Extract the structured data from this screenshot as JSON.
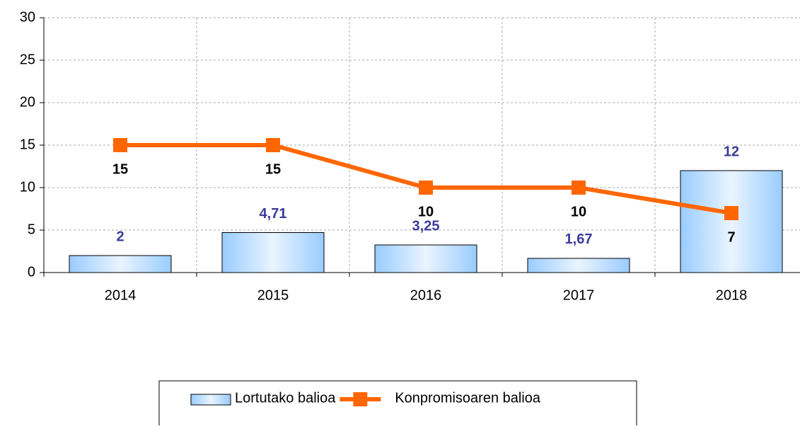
{
  "chart_data": {
    "type": "bar",
    "categories": [
      "2014",
      "2015",
      "2016",
      "2017",
      "2018"
    ],
    "series": [
      {
        "name": "Lortutako balioa",
        "type": "bar",
        "color": "#99ccff",
        "values": [
          2,
          4.71,
          3.25,
          1.67,
          12
        ],
        "value_labels": [
          "2",
          "4,71",
          "3,25",
          "1,67",
          "12"
        ]
      },
      {
        "name": "Konpromisoaren balioa",
        "type": "line",
        "color": "#ff6600",
        "values": [
          15,
          15,
          10,
          10,
          7
        ]
      }
    ],
    "ylim": [
      0,
      30
    ],
    "yticks": [
      0,
      5,
      10,
      15,
      20,
      25,
      30
    ],
    "grid": true,
    "legend": "bottom"
  }
}
